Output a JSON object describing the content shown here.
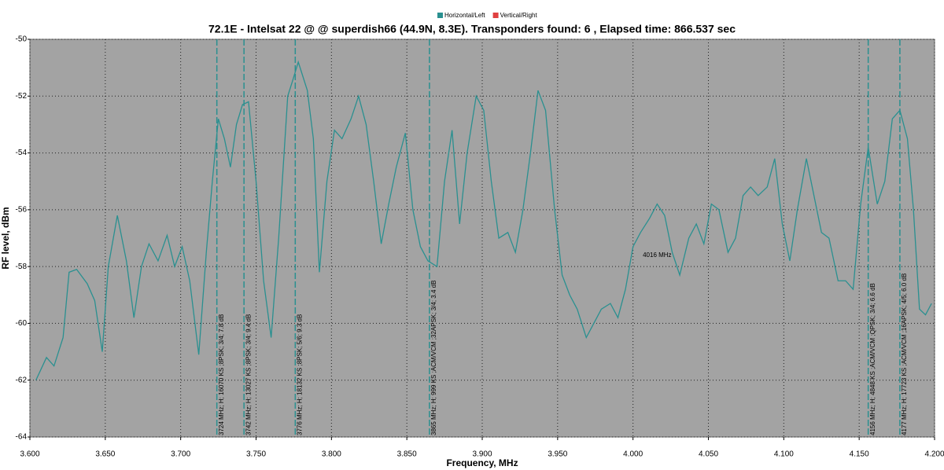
{
  "chart_data": {
    "type": "line",
    "title": "72.1E - Intelsat 22 @ @ superdish66 (44.9N, 8.3E). Transponders found: 6 , Elapsed time: 866.537 sec",
    "xlabel": "Frequency, MHz",
    "ylabel": "RF level, dBm",
    "legend": [
      {
        "name": "Horizontal/Left",
        "color": "#2a9090"
      },
      {
        "name": "Vertical/Right",
        "color": "#e04040"
      }
    ],
    "x": [
      3.604,
      3.611,
      3.616,
      3.622,
      3.626,
      3.631,
      3.638,
      3.643,
      3.648,
      3.652,
      3.658,
      3.664,
      3.669,
      3.674,
      3.679,
      3.685,
      3.691,
      3.696,
      3.701,
      3.706,
      3.712,
      3.717,
      3.721,
      3.725,
      3.729,
      3.733,
      3.737,
      3.741,
      3.745,
      3.75,
      3.755,
      3.76,
      3.765,
      3.771,
      3.774,
      3.778,
      3.784,
      3.788,
      3.792,
      3.797,
      3.802,
      3.807,
      3.813,
      3.818,
      3.823,
      3.828,
      3.833,
      3.838,
      3.843,
      3.849,
      3.854,
      3.859,
      3.864,
      3.87,
      3.875,
      3.88,
      3.885,
      3.89,
      3.896,
      3.901,
      3.906,
      3.911,
      3.917,
      3.922,
      3.927,
      3.932,
      3.937,
      3.942,
      3.948,
      3.953,
      3.958,
      3.963,
      3.969,
      3.974,
      3.979,
      3.985,
      3.99,
      3.995,
      4.0,
      4.005,
      4.011,
      4.016,
      4.021,
      4.026,
      4.031,
      4.037,
      4.042,
      4.047,
      4.052,
      4.057,
      4.063,
      4.068,
      4.073,
      4.078,
      4.083,
      4.089,
      4.094,
      4.099,
      4.104,
      4.109,
      4.115,
      4.12,
      4.125,
      4.13,
      4.136,
      4.141,
      4.146,
      4.151,
      4.156,
      4.162,
      4.167,
      4.172,
      4.177,
      4.182,
      4.186,
      4.19,
      4.194,
      4.198
    ],
    "series": [
      {
        "name": "Horizontal/Left",
        "color": "#2a9090",
        "values": [
          -62,
          -61.2,
          -61.5,
          -60.5,
          -58.2,
          -58.1,
          -58.6,
          -59.2,
          -61,
          -58,
          -56.2,
          -57.8,
          -59.8,
          -58,
          -57.2,
          -57.8,
          -56.9,
          -58,
          -57.3,
          -58.5,
          -61.1,
          -57.5,
          -55,
          -52.8,
          -53.5,
          -54.5,
          -53,
          -52.3,
          -52.2,
          -55,
          -58.5,
          -60.5,
          -57,
          -52,
          -51.5,
          -50.8,
          -51.8,
          -53.5,
          -58.2,
          -55,
          -53.2,
          -53.5,
          -52.8,
          -52,
          -53,
          -55,
          -57.2,
          -55.8,
          -54.5,
          -53.3,
          -56,
          -57.3,
          -57.8,
          -58,
          -55,
          -53.2,
          -56.5,
          -54,
          -52,
          -52.5,
          -55,
          -57,
          -56.8,
          -57.5,
          -56,
          -54,
          -51.8,
          -52.5,
          -56,
          -58.3,
          -59,
          -59.5,
          -60.5,
          -60,
          -59.5,
          -59.3,
          -59.8,
          -58.8,
          -57.3,
          -56.8,
          -56.3,
          -55.8,
          -56.2,
          -57.5,
          -58.3,
          -57,
          -56.5,
          -57.2,
          -55.8,
          -56,
          -57.5,
          -57,
          -55.5,
          -55.2,
          -55.5,
          -55.2,
          -54.2,
          -56.5,
          -57.8,
          -56,
          -54.2,
          -55.5,
          -56.8,
          -57,
          -58.5,
          -58.5,
          -58.8,
          -55.8,
          -53.8,
          -55.8,
          -55,
          -52.8,
          -52.5,
          -53.5,
          -56,
          -59.5,
          -59.7,
          -59.3
        ]
      }
    ],
    "markers": [
      {
        "x": 3.724,
        "label": "3724 MHz; H; 16070 KS ;8PSK; 3/4; 7.8 dB"
      },
      {
        "x": 3.742,
        "label": "3742 MHz; H; 13027 KS ;8PSK; 3/4; 9.4 dB"
      },
      {
        "x": 3.776,
        "label": "3776 MHz; H; 18132 KS ;8PSK; 5/6; 9.3 dB"
      },
      {
        "x": 3.865,
        "label": "3865 MHz; H; 999 KS ;ACM/VCM ;32APSK; 3/4; 3.4 dB"
      },
      {
        "x": 4.156,
        "label": "4156 MHz; H; 4848 KS ;ACM/VCM ;QPSK; 3/4; 6.6 dB"
      },
      {
        "x": 4.177,
        "label": "4177 MHz; H; 17723 KS ;ACM/VCM ;16APSK; 4/5; 6.0 dB"
      }
    ],
    "annotations": [
      {
        "text": "4016 MHz",
        "x": 4.016,
        "y": -57.6
      }
    ],
    "xlim": [
      3.6,
      4.2
    ],
    "xticks": [
      {
        "value": 3.6,
        "label": "3.600"
      },
      {
        "value": 3.65,
        "label": "3.650"
      },
      {
        "value": 3.7,
        "label": "3.700"
      },
      {
        "value": 3.75,
        "label": "3.750"
      },
      {
        "value": 3.8,
        "label": "3.800"
      },
      {
        "value": 3.85,
        "label": "3.850"
      },
      {
        "value": 3.9,
        "label": "3.900"
      },
      {
        "value": 3.95,
        "label": "3.950"
      },
      {
        "value": 4.0,
        "label": "4.000"
      },
      {
        "value": 4.05,
        "label": "4.050"
      },
      {
        "value": 4.1,
        "label": "4.100"
      },
      {
        "value": 4.15,
        "label": "4.150"
      },
      {
        "value": 4.2,
        "label": "4.200"
      }
    ],
    "ylim": [
      -64,
      -50
    ],
    "yticks": [
      -50,
      -52,
      -54,
      -56,
      -58,
      -60,
      -62,
      -64
    ],
    "grid": true
  }
}
